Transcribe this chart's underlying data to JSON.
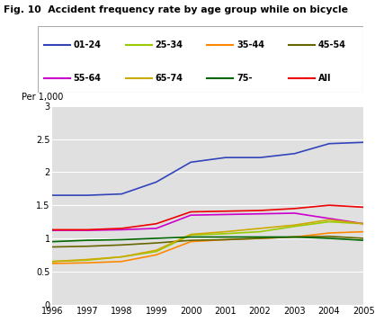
{
  "title": "Fig. 10  Accident frequency rate by age group while on bicycle",
  "ylabel": "Per 1,000",
  "years": [
    1996,
    1997,
    1998,
    1999,
    2000,
    2001,
    2002,
    2003,
    2004,
    2005
  ],
  "series": {
    "01-24": [
      1.65,
      1.65,
      1.67,
      1.85,
      2.15,
      2.22,
      2.22,
      2.28,
      2.43,
      2.45
    ],
    "25-34": [
      0.65,
      0.67,
      0.72,
      0.8,
      1.05,
      1.07,
      1.1,
      1.18,
      1.25,
      1.22
    ],
    "35-44": [
      0.62,
      0.63,
      0.65,
      0.75,
      0.95,
      0.98,
      1.0,
      1.02,
      1.08,
      1.1
    ],
    "45-54": [
      0.87,
      0.88,
      0.9,
      0.93,
      0.97,
      0.98,
      1.0,
      1.02,
      1.03,
      1.0
    ],
    "55-64": [
      1.12,
      1.12,
      1.13,
      1.15,
      1.35,
      1.36,
      1.37,
      1.38,
      1.3,
      1.22
    ],
    "65-74": [
      0.65,
      0.68,
      0.72,
      0.82,
      1.06,
      1.1,
      1.15,
      1.2,
      1.28,
      1.22
    ],
    "75-": [
      0.95,
      0.97,
      0.98,
      1.0,
      1.02,
      1.02,
      1.02,
      1.02,
      1.0,
      0.97
    ],
    "All": [
      1.13,
      1.13,
      1.15,
      1.22,
      1.4,
      1.41,
      1.42,
      1.45,
      1.5,
      1.47
    ]
  },
  "colors": {
    "01-24": "#3344bb",
    "25-34": "#99cc00",
    "35-44": "#ff8800",
    "45-54": "#666600",
    "55-64": "#cc00cc",
    "65-74": "#ccaa00",
    "75-": "#006600",
    "All": "#ee0000"
  },
  "ylim": [
    0,
    3
  ],
  "yticks": [
    0,
    0.5,
    1.0,
    1.5,
    2.0,
    2.5,
    3.0
  ],
  "background_color": "#e0e0e0",
  "legend_order": [
    "01-24",
    "25-34",
    "35-44",
    "45-54",
    "55-64",
    "65-74",
    "75-",
    "All"
  ]
}
